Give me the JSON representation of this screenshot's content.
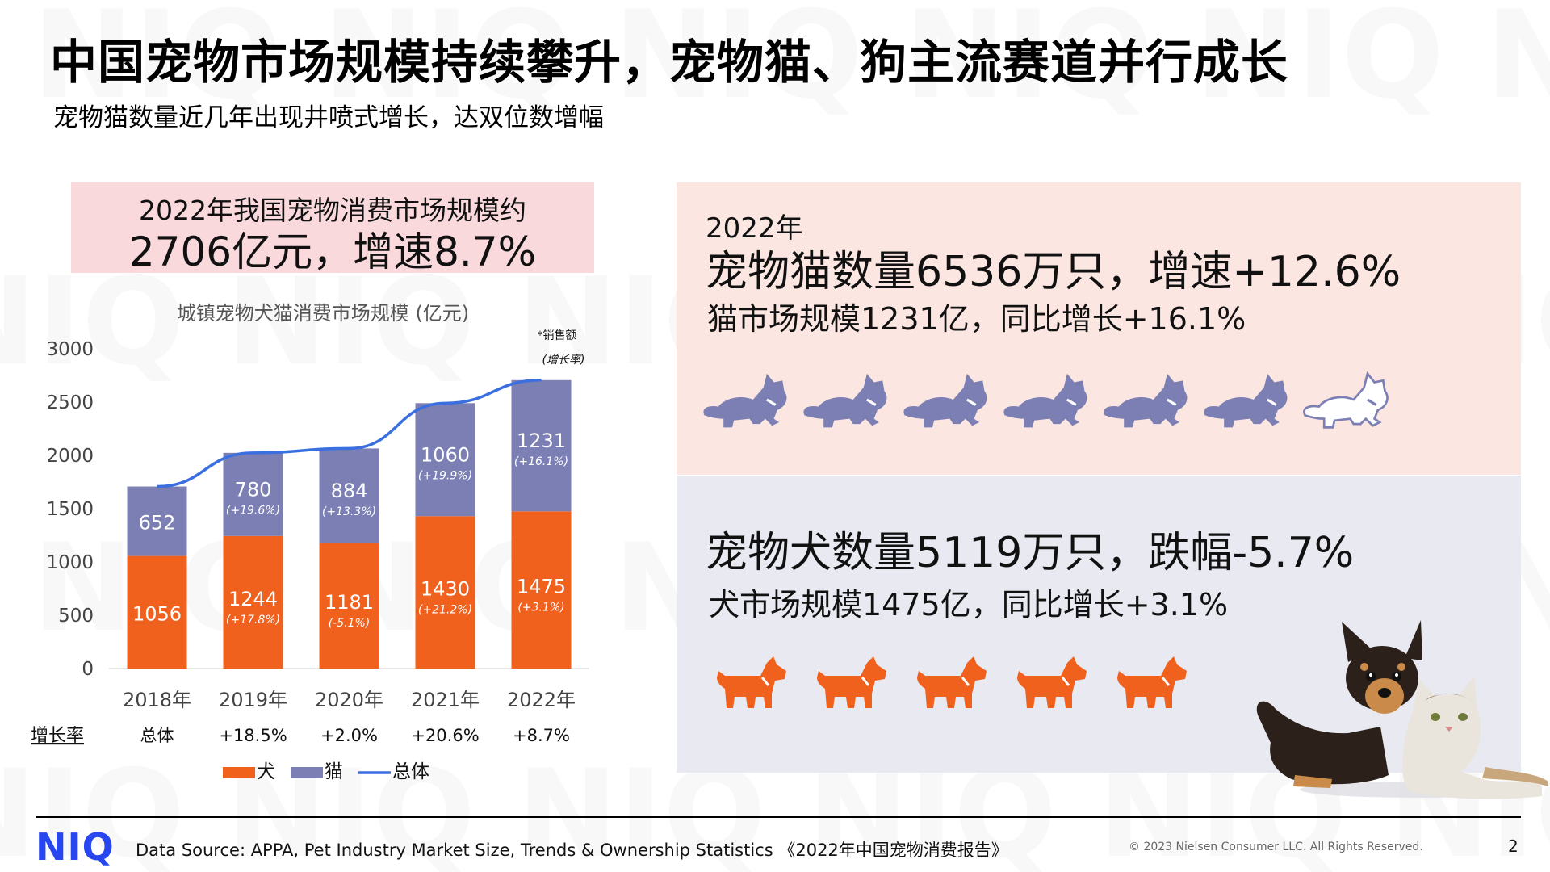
{
  "watermark": "NIQ",
  "title": "中国宠物市场规模持续攀升，宠物猫、狗主流赛道并行成长",
  "subtitle": "宠物猫数量近几年出现井喷式增长，达双位数增幅",
  "kpi": {
    "line1": "2022年我国宠物消费市场规模约",
    "line2": "2706亿元，增速8.7%"
  },
  "cat_panel": {
    "year": "2022年",
    "headline": "宠物猫数量6536万只，增速+12.6%",
    "detail": "猫市场规模1231亿，同比增长+16.1%",
    "icons_filled": 6,
    "icons_outline": 1
  },
  "dog_panel": {
    "headline": "宠物犬数量5119万只，跌幅-5.7%",
    "detail": "犬市场规模1475亿，同比增长+3.1%",
    "icons_filled": 5
  },
  "colors": {
    "dog": "#f0611e",
    "cat": "#7b7fb3",
    "total": "#3a6fe0",
    "logo": "#2846f0",
    "cat_panel_bg": "#fce6e1",
    "dog_panel_bg": "#e8e9f1",
    "kpi_bg": "#f9d9dc"
  },
  "chart_data": {
    "type": "bar",
    "stacked": true,
    "title": "城镇宠物犬猫消费市场规模 (亿元)",
    "note_line1": "*销售额",
    "note_line2": "(增长率)",
    "categories": [
      "2018年",
      "2019年",
      "2020年",
      "2021年",
      "2022年"
    ],
    "ylim": [
      0,
      3000
    ],
    "yticks": [
      0,
      500,
      1000,
      1500,
      2000,
      2500,
      3000
    ],
    "series": [
      {
        "name": "犬",
        "values": [
          1056,
          1244,
          1181,
          1430,
          1475
        ],
        "growth": [
          "",
          "(+17.8%)",
          "(-5.1%)",
          "(+21.2%)",
          "(+3.1%)"
        ]
      },
      {
        "name": "猫",
        "values": [
          652,
          780,
          884,
          1060,
          1231
        ],
        "growth": [
          "",
          "(+19.6%)",
          "(+13.3%)",
          "(+19.9%)",
          "(+16.1%)"
        ]
      }
    ],
    "line": {
      "name": "总体",
      "values": [
        1708,
        2024,
        2065,
        2490,
        2706
      ]
    },
    "growth_row": {
      "label": "增长率",
      "values": [
        "总体",
        "+18.5%",
        "+2.0%",
        "+20.6%",
        "+8.7%"
      ]
    },
    "legend": [
      "犬",
      "猫",
      "总体"
    ],
    "legend_position": "bottom"
  },
  "footer": {
    "logo": "NIQ",
    "source": "Data Source: APPA, Pet Industry Market Size, Trends & Ownership Statistics 《2022年中国宠物消费报告》",
    "copyright": "© 2023 Nielsen Consumer LLC. All Rights Reserved.",
    "page": "2"
  }
}
